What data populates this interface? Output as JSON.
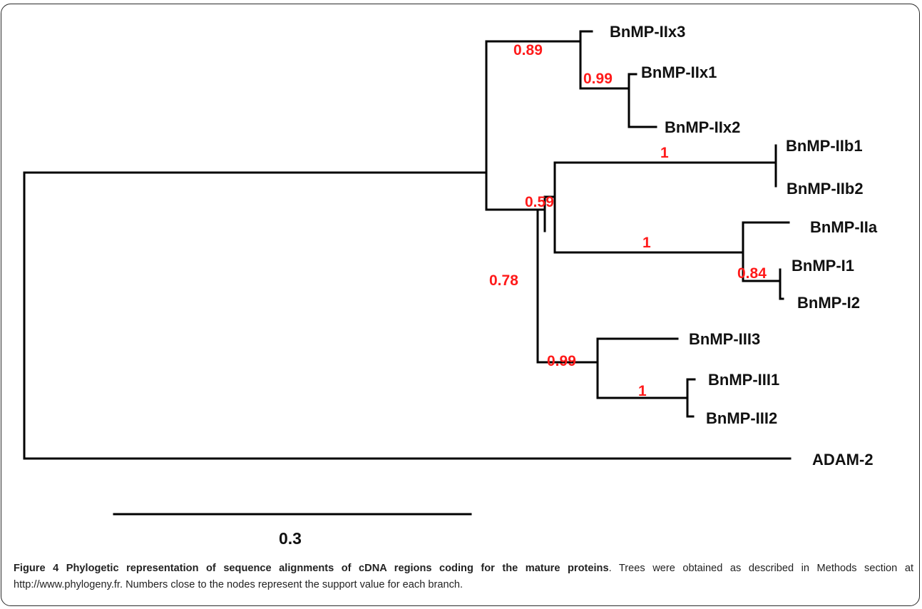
{
  "tree": {
    "leaves": {
      "IIx3": "BnMP-IIx3",
      "IIx1": "BnMP-IIx1",
      "IIx2": "BnMP-IIx2",
      "IIb1": "BnMP-IIb1",
      "IIb2": "BnMP-IIb2",
      "IIa": "BnMP-IIa",
      "I1": "BnMP-I1",
      "I2": "BnMP-I2",
      "III3": "BnMP-III3",
      "III1": "BnMP-III1",
      "III2": "BnMP-III2",
      "ADAM2": "ADAM-2"
    },
    "supports": {
      "n089": "0.89",
      "n099a": "0.99",
      "n1a": "1",
      "n059": "0.59",
      "n1b": "1",
      "n084": "0.84",
      "n078": "0.78",
      "n099b": "0.99",
      "n1c": "1"
    },
    "scale_label": "0.3"
  },
  "caption": {
    "title": "Figure 4 Phylogetic representation of sequence alignments of cDNA regions coding for the mature proteins",
    "body": ". Trees were obtained as described in Methods section at http://www.phylogeny.fr. Numbers close to the nodes represent the support value for each branch."
  }
}
